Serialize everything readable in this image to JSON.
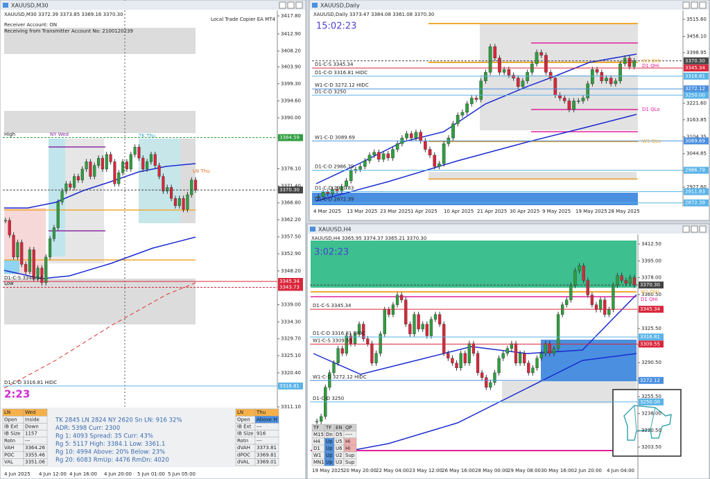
{
  "left": {
    "title": "XAUUSD,M30",
    "ohlc": "XAUUSD,M30  3372.39 3373.85 3369.16 3370.30",
    "ea": "Local Trade Copier EA MT4",
    "receiver": "Receiver Account: ON",
    "receiving": "Receiving from Transmitter Account No: 2100120239",
    "timer": "2:23",
    "notes": {
      "high": "High",
      "low": "Low",
      "ny": "NY Wed",
      "tk": "TK Thu",
      "ln": "LN Thu"
    },
    "price_axis": [
      "3417.80",
      "3412.90",
      "3408.20",
      "3403.90",
      "3399.30",
      "3394.60",
      "3390.00",
      "3376.10",
      "3371.40",
      "3366.80",
      "3362.20",
      "3357.50",
      "3352.90",
      "3348.20",
      "3339.00",
      "3334.30",
      "3329.70",
      "3325.10",
      "3320.40",
      "3311.10"
    ],
    "time_axis": [
      "4 Jun 2025",
      "4 Jun 12:00",
      "4 Jun 16:00",
      "4 Jun 20:00",
      "5 Jun 01:00",
      "5 Jun 05:00"
    ],
    "levels": [
      {
        "tag": "3384.59",
        "color": "#2e9e3e"
      },
      {
        "tag": "3370.30",
        "color": "#444444"
      },
      {
        "label": "D1-C-S 3345.34",
        "tag": "3345.34",
        "color": "#d9263b"
      },
      {
        "tag": "3343.73",
        "color": "#d9263b"
      },
      {
        "label": "D1-C-D 3316.81 HIDC",
        "tag": "3316.81",
        "color": "#5ab4e8"
      }
    ],
    "closes": [
      3362,
      3358,
      3352,
      3356,
      3350,
      3348,
      3354,
      3346,
      3349,
      3345,
      3352,
      3357,
      3360,
      3367,
      3370,
      3372,
      3371,
      3374,
      3373,
      3376,
      3378,
      3374,
      3377,
      3379,
      3376,
      3380,
      3378,
      3372,
      3375,
      3378,
      3376,
      3380,
      3382,
      3379,
      3376,
      3378,
      3380,
      3377,
      3374,
      3370,
      3371,
      3368,
      3366,
      3368,
      3365,
      3369,
      3373,
      3370.3
    ],
    "session_table": {
      "rows": [
        [
          "LN",
          "Wed"
        ],
        [
          "Open",
          "Inside"
        ],
        [
          "IB Ext",
          "Down"
        ],
        [
          "IB Size",
          "1157"
        ],
        [
          "Rotn",
          "---"
        ],
        [
          "VAH",
          "3364.26"
        ],
        [
          "POC",
          "3355.46"
        ],
        [
          "VAL",
          "3351.06"
        ]
      ]
    },
    "stats": [
      "TK 2845  LN 2824  NY 2620   Sn LN: 916  32%",
      "ADR:  5398    Curr:  2300",
      "Rg 1:  4093  Spread:  35    Curr:    43%",
      "Rg 5:  5117  High: 3384.1   Low:   3361.1",
      "Rg 10: 4994  Above:  20%   Below:  23%",
      "Rg 20: 6083  RmUp: 4476   RmDn: 4020"
    ],
    "day_table": {
      "rows": [
        [
          "LN",
          "Thu"
        ],
        [
          "Open",
          "Above H"
        ],
        [
          "IB Ext",
          "---"
        ],
        [
          "IB Size",
          "916"
        ],
        [
          "Rotn",
          "---"
        ],
        [
          "dVAH",
          "3373.81"
        ],
        [
          "dPOC",
          "3369.81"
        ],
        [
          "dVAL",
          "3369.01"
        ]
      ]
    }
  },
  "daily": {
    "title": "XAUUSD,Daily",
    "ohlc": "XAUUSD,Daily  3373.47 3384.08 3361.08 3370.30",
    "timer": "15:02:23",
    "notes": {
      "w1qhi": "W1 QHi",
      "d1qhi": "D1 QHi",
      "d1qlo": "D1 QLo",
      "w1qlo": "W1 QLo"
    },
    "price_axis": [
      "3515.60",
      "3456.10",
      "3398.95",
      "3221.60",
      "3163.85",
      "3104.35",
      "3044.85",
      "2986.55",
      "2927.60"
    ],
    "time_axis": [
      "4 Mar 2025",
      "13 Mar 2025",
      "23 Mar 2025",
      "1 Apr 2025",
      "10 Apr 2025",
      "21 Apr 2025",
      "30 Apr 2025",
      "9 May 2025",
      "19 May 2025",
      "28 May 2025"
    ],
    "levels": [
      {
        "tag": "3370.30",
        "color": "#444444"
      },
      {
        "label": "D1-C-S 3345.34",
        "tag": "3345.34",
        "color": "#d9263b"
      },
      {
        "label": "D1-C-D 3316.81 HIDC",
        "tag": "3316.81",
        "color": "#5ab4e8"
      },
      {
        "label": "W1-C-D 3272.12 HIDC",
        "tag": "3272.12",
        "color": "#4a8fe0"
      },
      {
        "label": "D1-C-D 3250",
        "tag": "3250.00",
        "color": "#5ab4e8"
      },
      {
        "label": "W1-C-D 3089.69",
        "tag": "3089.69",
        "color": "#4a8fe0"
      },
      {
        "label": "D1-C-D 2986.79",
        "tag": "2986.79",
        "color": "#5ab4e8"
      },
      {
        "label": "D1-C-D 2911.83",
        "tag": "2911.83",
        "color": "#5ab4e8"
      },
      {
        "label": "D1-C-D 2872.39",
        "tag": "2872.39",
        "color": "#5ab4e8"
      }
    ],
    "closes": [
      2895,
      2910,
      2905,
      2920,
      2915,
      2930,
      2950,
      2985,
      2990,
      3000,
      3020,
      3040,
      3050,
      3025,
      3045,
      3030,
      3060,
      3080,
      3100,
      3115,
      3100,
      3120,
      3090,
      3060,
      3040,
      3000,
      3010,
      3080,
      3100,
      3150,
      3180,
      3190,
      3220,
      3240,
      3235,
      3300,
      3330,
      3420,
      3380,
      3330,
      3340,
      3320,
      3310,
      3280,
      3300,
      3330,
      3360,
      3400,
      3390,
      3330,
      3310,
      3250,
      3240,
      3230,
      3200,
      3230,
      3230,
      3240,
      3290,
      3340,
      3330,
      3300,
      3310,
      3290,
      3300,
      3360,
      3380,
      3350,
      3370.3
    ]
  },
  "h4": {
    "title": "XAUUSD,H4",
    "ohlc": "XAUUSD,H4  3365.95 3374.37 3365.21 3370.30",
    "timer": "3:02:23",
    "notes": {
      "w1qhi": "W1 QHi",
      "d1qhi": "D1 QHi"
    },
    "price_axis": [
      "3412.50",
      "3395.00",
      "3378.00",
      "3360.50",
      "3343.50",
      "3325.50",
      "3308.50",
      "3290.50",
      "3273.50",
      "3255.50",
      "3238.00",
      "3220.50",
      "3203.50"
    ],
    "time_axis": [
      "19 May 2025",
      "20 May 20:00",
      "22 May 04:00",
      "23 May 12:00",
      "26 May 16:00",
      "28 May 00:00",
      "29 May 08:00",
      "30 May 16:00",
      "2 Jun 20:00",
      "4 Jun 04:00"
    ],
    "levels": [
      {
        "tag": "3370.30",
        "color": "#444444"
      },
      {
        "label": "D1-C-S 3345.34",
        "tag": "3345.34",
        "color": "#d9263b"
      },
      {
        "label": "D1-C-D 3316.81 HIDC",
        "tag": "3316.81",
        "color": "#5ab4e8"
      },
      {
        "label": "W1-C-S 3309.55",
        "tag": "3309.55",
        "color": "#d9263b"
      },
      {
        "label": "W1-C-D 3272.12 HIDC",
        "tag": "3272.12",
        "color": "#4a8fe0"
      },
      {
        "label": "D1-C-D 3250",
        "tag": "3250.00",
        "color": "#5ab4e8"
      }
    ],
    "closes": [
      3230,
      3235,
      3265,
      3280,
      3290,
      3305,
      3300,
      3318,
      3310,
      3320,
      3330,
      3315,
      3310,
      3290,
      3300,
      3320,
      3345,
      3340,
      3350,
      3360,
      3355,
      3330,
      3320,
      3340,
      3325,
      3330,
      3318,
      3335,
      3340,
      3330,
      3300,
      3295,
      3290,
      3285,
      3300,
      3290,
      3310,
      3300,
      3280,
      3275,
      3265,
      3270,
      3280,
      3295,
      3300,
      3305,
      3310,
      3290,
      3300,
      3290,
      3280,
      3285,
      3295,
      3300,
      3310,
      3300,
      3305,
      3340,
      3350,
      3355,
      3370,
      3385,
      3390,
      3375,
      3360,
      3350,
      3345,
      3355,
      3340,
      3345,
      3370,
      3380,
      3375,
      3372,
      3378,
      3370.3
    ],
    "tf_table": {
      "rows": [
        [
          "TF",
          "TF",
          "EN",
          "QP"
        ],
        [
          "M15",
          "Dn",
          "D5",
          "----"
        ],
        [
          "H4",
          "Up",
          "U5",
          "Hi"
        ],
        [
          "D1",
          "Up",
          "U6",
          "Hi"
        ],
        [
          "W1",
          "Up",
          "U2",
          "Sup"
        ],
        [
          "MN1",
          "Up",
          "U3",
          "Sup"
        ]
      ]
    }
  }
}
